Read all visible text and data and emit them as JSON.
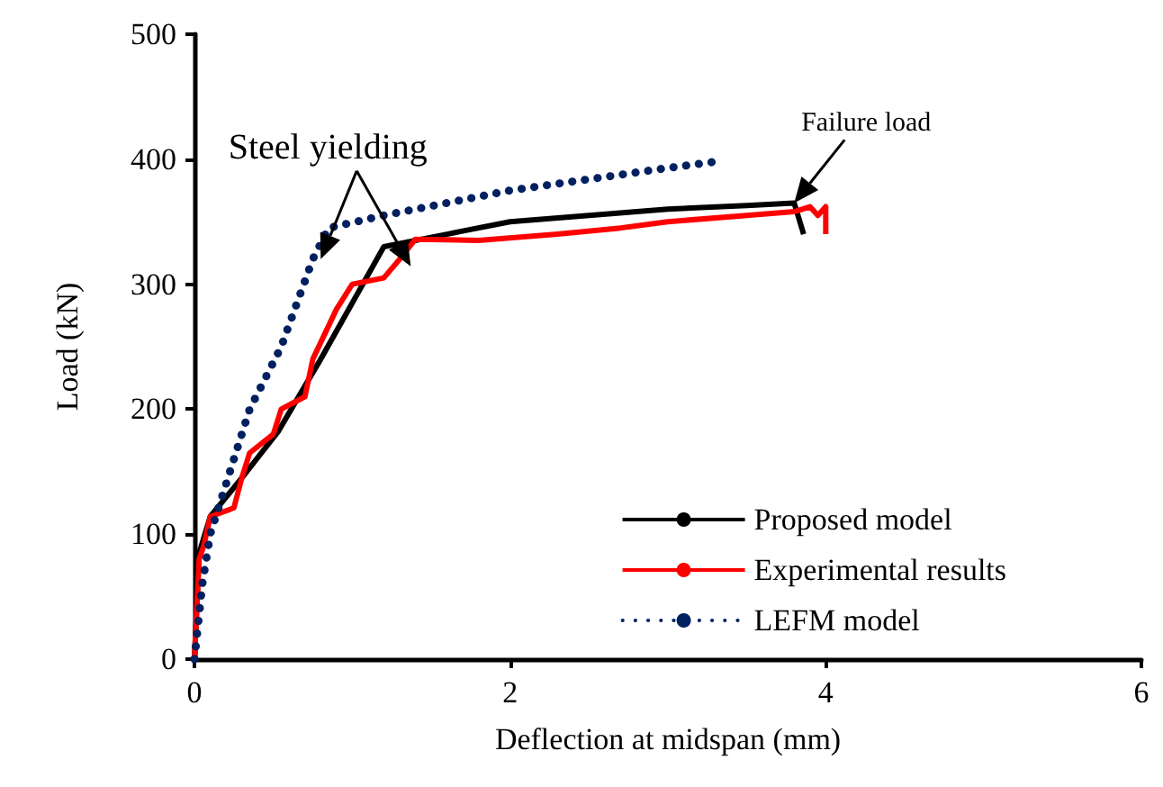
{
  "chart_data": {
    "type": "line",
    "xlabel": "Deflection at midspan (mm)",
    "ylabel": "Load (kN)",
    "xlim": [
      0,
      6
    ],
    "xticks": [
      0,
      2,
      4,
      6
    ],
    "ylim": [
      0,
      500
    ],
    "yticks": [
      0,
      100,
      200,
      300,
      400,
      500
    ],
    "grid": false,
    "legend": "bottom right",
    "marker": "none",
    "annotations": [
      {
        "text": "Steel yielding",
        "x": 0.8,
        "y": 320
      },
      {
        "text": "Failure load",
        "x": 3.8,
        "y": 365
      }
    ],
    "series": [
      {
        "name": "Proposed model",
        "color": "#000000",
        "line_style": "solid",
        "x": [
          0,
          0.03,
          0.1,
          0.3,
          0.53,
          0.8,
          1.0,
          1.2,
          1.6,
          2.0,
          2.5,
          3.0,
          3.5,
          3.8,
          3.86
        ],
        "values": [
          0,
          85,
          114,
          145,
          182,
          240,
          285,
          330,
          340,
          350,
          355,
          360,
          363,
          365,
          340
        ]
      },
      {
        "name": "Experimental results",
        "color": "#ff0000",
        "line_style": "solid",
        "x": [
          0,
          0.03,
          0.06,
          0.1,
          0.25,
          0.3,
          0.35,
          0.5,
          0.55,
          0.7,
          0.75,
          0.9,
          1.0,
          1.2,
          1.3,
          1.4,
          1.8,
          2.3,
          2.7,
          3.0,
          3.5,
          3.8,
          3.9,
          3.95,
          4.0,
          4.0
        ],
        "values": [
          0,
          80,
          91,
          114,
          121,
          145,
          165,
          180,
          200,
          210,
          240,
          280,
          300,
          305,
          320,
          336,
          335,
          340,
          345,
          350,
          355,
          358,
          362,
          355,
          362,
          340
        ]
      },
      {
        "name": "LEFM model",
        "color": "#002060",
        "line_style": "dotted",
        "x": [
          0,
          0.05,
          0.1,
          0.2,
          0.35,
          0.55,
          0.75,
          0.85,
          1.2,
          2.0,
          3.0,
          3.3
        ],
        "values": [
          0,
          60,
          100,
          140,
          200,
          250,
          320,
          345,
          355,
          375,
          393,
          398
        ]
      }
    ]
  }
}
